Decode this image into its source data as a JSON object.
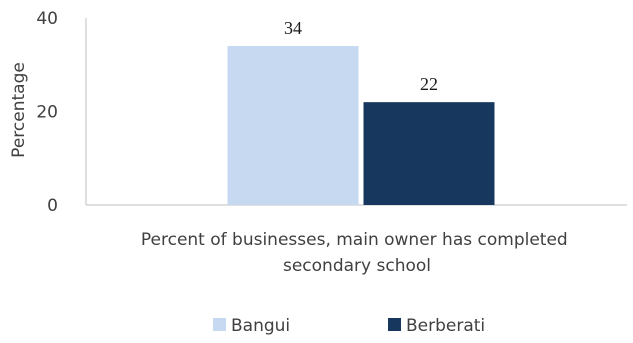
{
  "chart_data": {
    "type": "bar",
    "categories": [
      "Percent of businesses, main owner has completed secondary school"
    ],
    "category_label_lines": [
      "Percent of businesses, main owner has completed",
      "secondary school"
    ],
    "series": [
      {
        "name": "Bangui",
        "values": [
          34
        ],
        "color": "#c6d9f1"
      },
      {
        "name": "Berberati",
        "values": [
          22
        ],
        "color": "#17375e"
      }
    ],
    "data_labels": [
      "34",
      "22"
    ],
    "ylabel": "Percentage",
    "ylim": [
      0,
      40
    ],
    "yticks": [
      0,
      20,
      40
    ],
    "ytick_labels": [
      "0",
      "20",
      "40"
    ],
    "grid": false,
    "legend_position": "bottom"
  }
}
